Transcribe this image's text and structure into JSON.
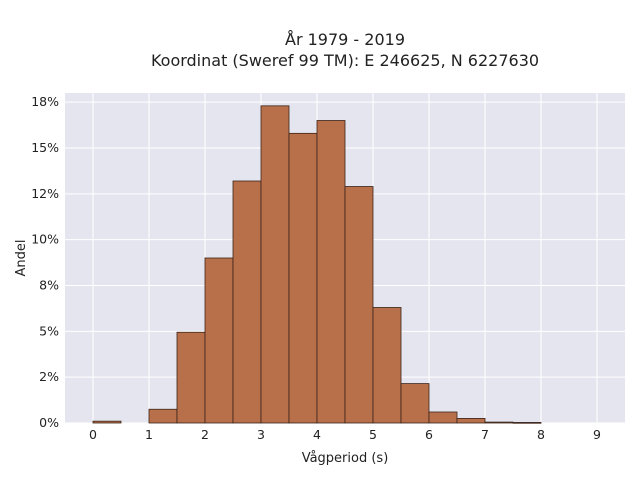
{
  "chart_data": {
    "type": "bar",
    "title_lines": [
      "År 1979 - 2019",
      "Koordinat (Sweref 99 TM): E 246625, N 6227630"
    ],
    "xlabel": "Vågperiod (s)",
    "ylabel": "Andel",
    "x_tick_values": [
      0,
      1,
      2,
      3,
      4,
      5,
      6,
      7,
      8,
      9
    ],
    "x_tick_labels": [
      "0",
      "1",
      "2",
      "3",
      "4",
      "5",
      "6",
      "7",
      "8",
      "9"
    ],
    "y_tick_values": [
      0,
      2.5,
      5,
      7.5,
      10,
      12.5,
      15,
      17.5
    ],
    "y_tick_labels": [
      "0%",
      "2%",
      "5%",
      "8%",
      "10%",
      "12%",
      "15%",
      "18%"
    ],
    "xlim": [
      -0.5,
      9.5
    ],
    "ylim": [
      0,
      18
    ],
    "bin_width": 0.5,
    "bins": [
      {
        "x0": 0.0,
        "x1": 0.5,
        "value": 0.1
      },
      {
        "x0": 0.5,
        "x1": 1.0,
        "value": 0.0
      },
      {
        "x0": 1.0,
        "x1": 1.5,
        "value": 0.75
      },
      {
        "x0": 1.5,
        "x1": 2.0,
        "value": 4.95
      },
      {
        "x0": 2.0,
        "x1": 2.5,
        "value": 9.0
      },
      {
        "x0": 2.5,
        "x1": 3.0,
        "value": 13.2
      },
      {
        "x0": 3.0,
        "x1": 3.5,
        "value": 17.3
      },
      {
        "x0": 3.5,
        "x1": 4.0,
        "value": 15.8
      },
      {
        "x0": 4.0,
        "x1": 4.5,
        "value": 16.5
      },
      {
        "x0": 4.5,
        "x1": 5.0,
        "value": 12.9
      },
      {
        "x0": 5.0,
        "x1": 5.5,
        "value": 6.3
      },
      {
        "x0": 5.5,
        "x1": 6.0,
        "value": 2.15
      },
      {
        "x0": 6.0,
        "x1": 6.5,
        "value": 0.6
      },
      {
        "x0": 6.5,
        "x1": 7.0,
        "value": 0.25
      },
      {
        "x0": 7.0,
        "x1": 7.5,
        "value": 0.05
      },
      {
        "x0": 7.5,
        "x1": 8.0,
        "value": 0.03
      }
    ],
    "grid": true,
    "colors": {
      "plot_background": "#e5e5ef",
      "grid": "#ffffff",
      "bar_fill": "#b8704a",
      "bar_edge": "#3a2418"
    }
  }
}
